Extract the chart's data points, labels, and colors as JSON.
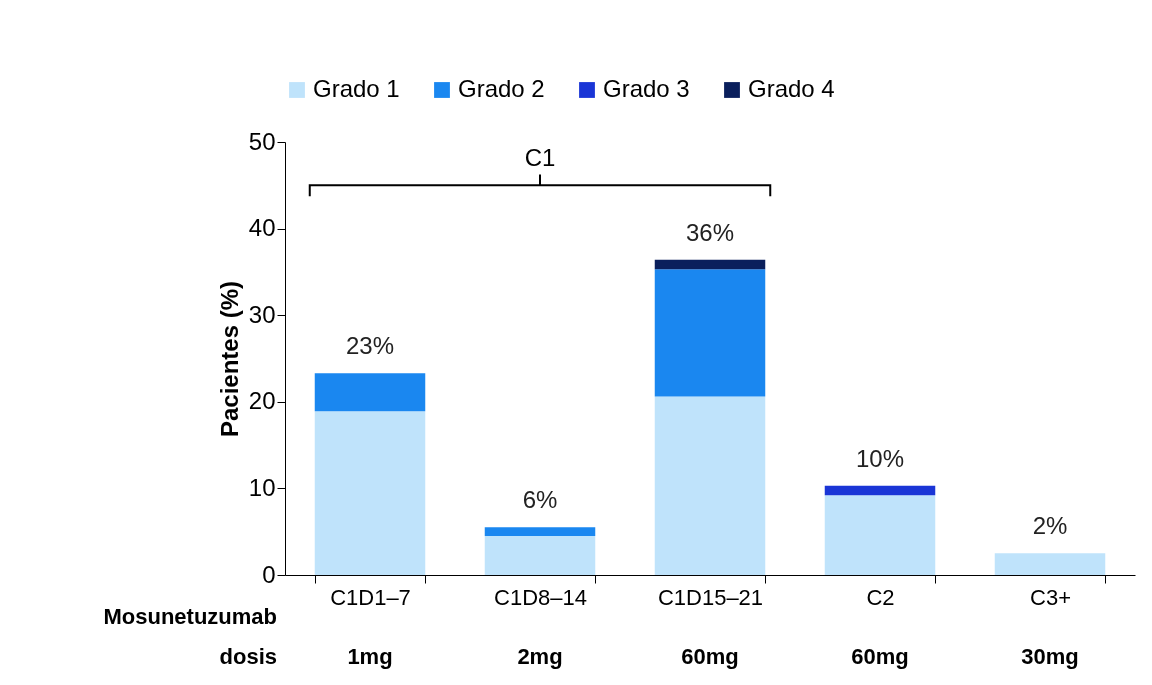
{
  "chart_data": {
    "type": "bar",
    "stacked": true,
    "xlabel": "Mosunetuzumab dosis",
    "ylabel": "Pacientes (%)",
    "categories": [
      "C1D1–7",
      "C1D8–14",
      "C1D15–21",
      "C2",
      "C3+"
    ],
    "series": [
      {
        "name": "Grado 1",
        "color": "#bfe3fb",
        "values": [
          18.9,
          4.5,
          20.6,
          9.2,
          2.5
        ]
      },
      {
        "name": "Grado 2",
        "color": "#1a87f0",
        "values": [
          4.4,
          1.0,
          14.7,
          null,
          null
        ]
      },
      {
        "name": "Grado 3",
        "color": "#1a35d6",
        "values": [
          null,
          null,
          null,
          1.1,
          null
        ]
      },
      {
        "name": "Grado 4",
        "color": "#0a1f5c",
        "values": [
          null,
          null,
          1.1,
          null,
          null
        ]
      }
    ],
    "totals": [
      "23%",
      "6%",
      "36%",
      "10%",
      "2%"
    ],
    "ylim": [
      0,
      50
    ],
    "yticks": [
      0,
      10,
      20,
      30,
      40,
      50
    ],
    "grid": false,
    "legend": "top",
    "annotations": [
      "C1",
      "1mg",
      "2mg",
      "60mg",
      "60mg",
      "30mg"
    ]
  }
}
